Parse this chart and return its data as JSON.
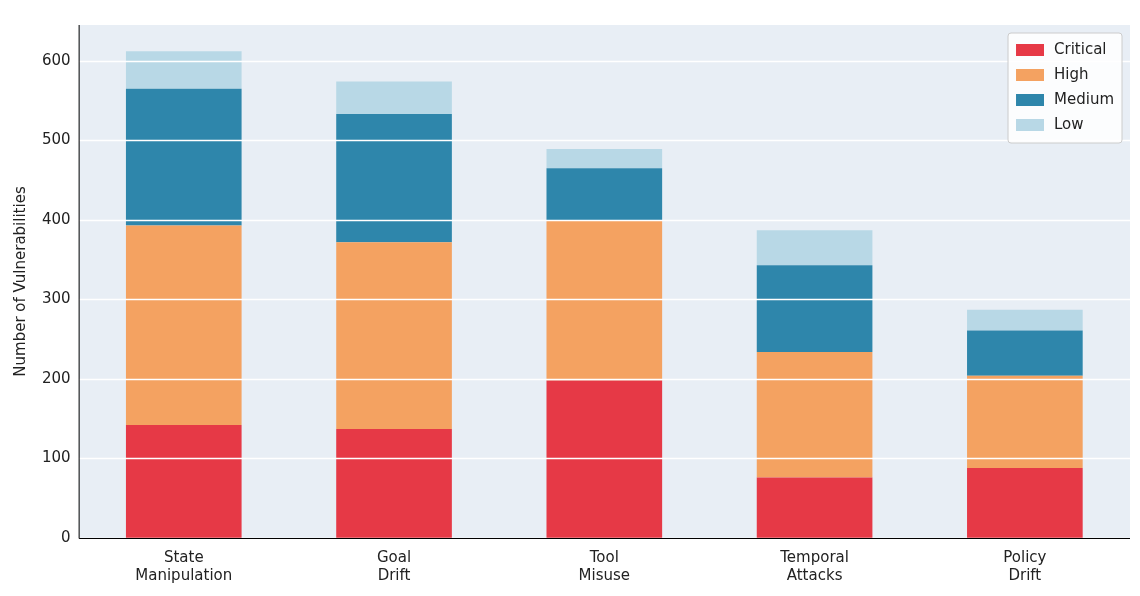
{
  "chart_data": {
    "type": "bar",
    "stacked": true,
    "ylabel": "Number of Vulnerabilities",
    "categories": [
      "State Manipulation",
      "Goal Drift",
      "Tool Misuse",
      "Temporal Attacks",
      "Policy Drift"
    ],
    "series": [
      {
        "name": "Critical",
        "color": "#e63946",
        "values": [
          142,
          137,
          198,
          76,
          88
        ]
      },
      {
        "name": "High",
        "color": "#f4a261",
        "values": [
          251,
          235,
          201,
          158,
          116
        ]
      },
      {
        "name": "Medium",
        "color": "#2e86ab",
        "values": [
          172,
          161,
          66,
          109,
          57
        ]
      },
      {
        "name": "Low",
        "color": "#b8d8e6",
        "values": [
          47,
          41,
          24,
          44,
          26
        ]
      }
    ],
    "ylim": [
      0,
      645
    ],
    "yticks": [
      0,
      100,
      200,
      300,
      400,
      500,
      600
    ],
    "grid": "y",
    "legend": "top right"
  }
}
